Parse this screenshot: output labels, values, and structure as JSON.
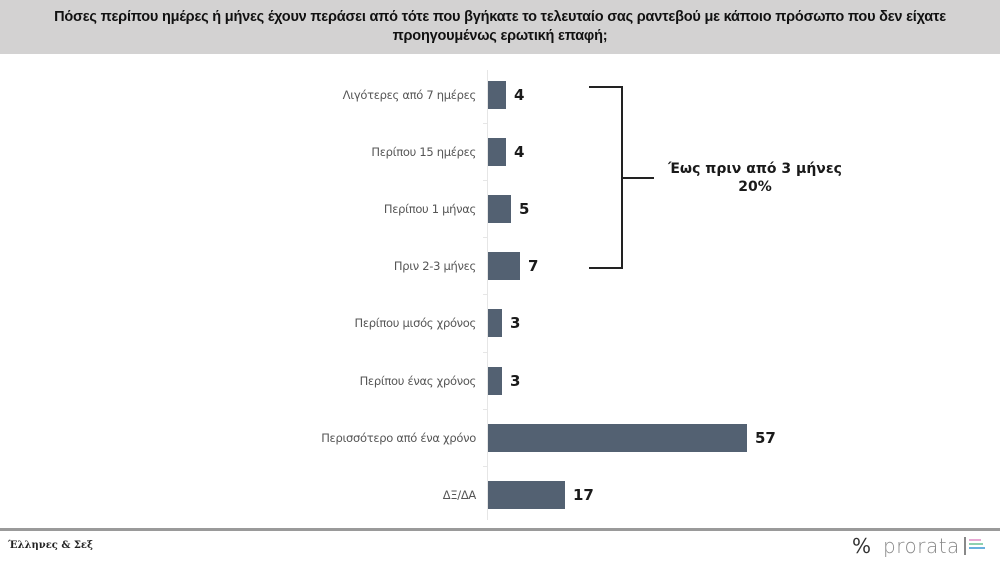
{
  "header": {
    "title": "Πόσες περίπου ημέρες ή μήνες έχουν περάσει από τότε που βγήκατε το τελευταίο σας ραντεβού με κάποιο πρόσωπο που δεν είχατε προηγουμένως ερωτική επαφή;"
  },
  "chart_data": {
    "type": "bar",
    "orientation": "horizontal",
    "title": "Πόσες περίπου ημέρες ή μήνες έχουν περάσει από τότε που βγήκατε το τελευταίο σας ραντεβού με κάποιο πρόσωπο που δεν είχατε προηγουμένως ερωτική επαφή;",
    "categories": [
      "Λιγότερες από 7 ημέρες",
      "Περίπου 15 ημέρες",
      "Περίπου 1 μήνας",
      "Πριν 2-3 μήνες",
      "Περίπου μισός χρόνος",
      "Περίπου ένας χρόνος",
      "Περισσότερο από ένα χρόνο",
      "ΔΞ/ΔΑ"
    ],
    "values": [
      4,
      4,
      5,
      7,
      3,
      3,
      57,
      17
    ],
    "value_labels": [
      "4",
      "4",
      "5",
      "7",
      "3",
      "3",
      "57",
      "17"
    ],
    "xlabel": "",
    "ylabel": "",
    "xlim": [
      0,
      60
    ],
    "grid": false,
    "legend": null,
    "bar_color": "#536172",
    "annotations": [
      {
        "type": "bracket",
        "spans_categories": [
          "Λιγότερες από 7 ημέρες",
          "Πριν 2-3 μήνες"
        ],
        "line1": "Έως πριν από 3 μήνες",
        "line2": "20%"
      }
    ]
  },
  "bracket": {
    "line1": "Έως πριν από 3 μήνες",
    "line2": "20%"
  },
  "footer": {
    "source": "Έλληνες & Σεξ",
    "logo_symbol": "%",
    "logo_text": "prorata",
    "logo_colors": [
      "#e7a8d3",
      "#8fd0b0",
      "#6ab0de"
    ]
  }
}
